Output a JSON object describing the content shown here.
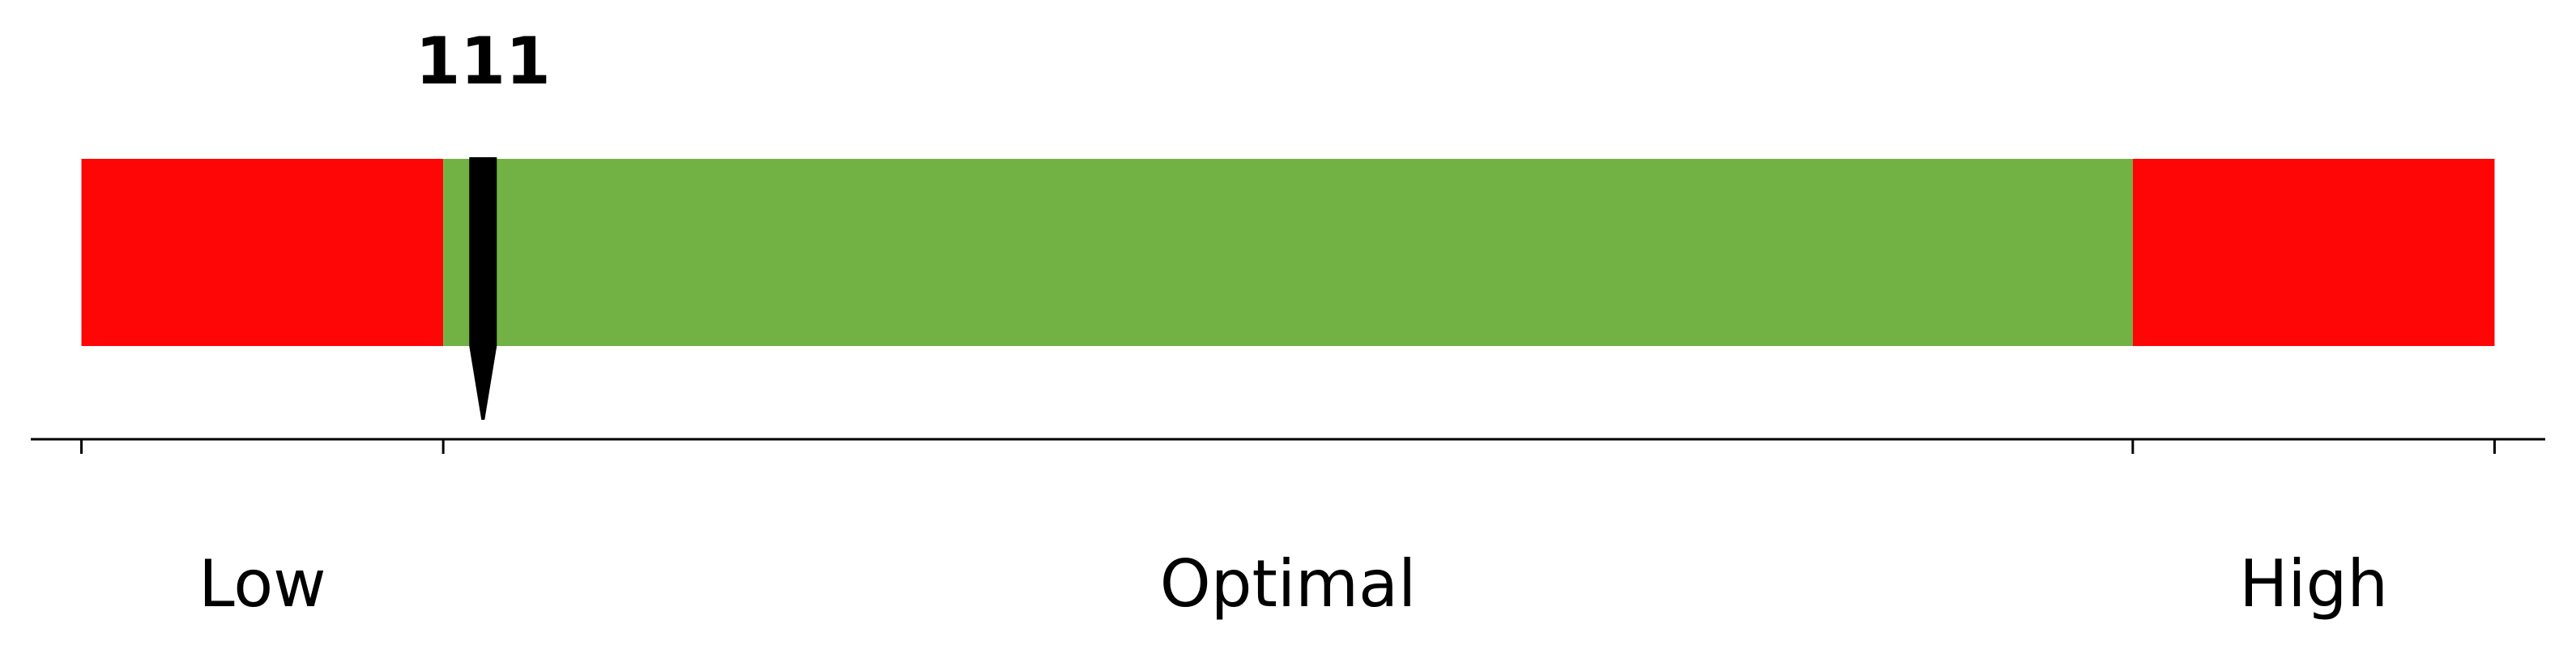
{
  "chart_data": {
    "type": "bar",
    "title": "",
    "xlabel": "",
    "ylabel": "",
    "zones": [
      {
        "name": "Low",
        "start": 0,
        "end": 100,
        "color": "#ff0606"
      },
      {
        "name": "Optimal",
        "start": 100,
        "end": 567,
        "color": "#72b245"
      },
      {
        "name": "High",
        "start": 567,
        "end": 667,
        "color": "#ff0606"
      }
    ],
    "ticks": [
      0,
      100,
      567,
      667
    ],
    "marker": {
      "value": 111,
      "label": "111",
      "color": "#000000"
    },
    "xlim": [
      -14,
      681
    ],
    "grid": false,
    "legend": "none"
  }
}
